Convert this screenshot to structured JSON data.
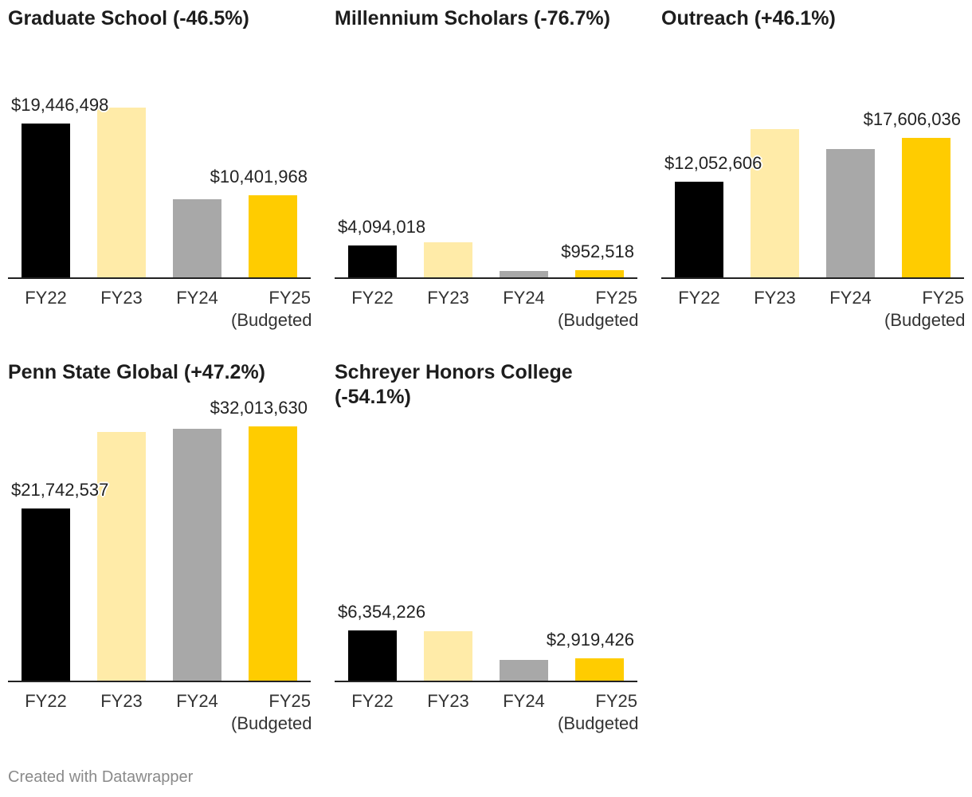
{
  "footer": "Created with Datawrapper",
  "colors": {
    "FY22": "#000000",
    "FY23": "#ffeba8",
    "FY24": "#a8a8a8",
    "FY25": "#ffcc00"
  },
  "chart_data": [
    {
      "type": "bar",
      "title": "Graduate School (-46.5%)",
      "categories": [
        "FY22",
        "FY23",
        "FY24",
        "FY25 (Budgeted)"
      ],
      "values": [
        19446498,
        21400000,
        9900000,
        10401968
      ],
      "labels": [
        {
          "index": 0,
          "text": "$19,446,498"
        },
        {
          "index": 3,
          "text": "$10,401,968"
        }
      ],
      "ylim": [
        0,
        22000000
      ]
    },
    {
      "type": "bar",
      "title": "Millennium Scholars (-76.7%)",
      "categories": [
        "FY22",
        "FY23",
        "FY24",
        "FY25 (Budgeted)"
      ],
      "values": [
        4094018,
        4500000,
        850000,
        952518
      ],
      "labels": [
        {
          "index": 0,
          "text": "$4,094,018"
        },
        {
          "index": 3,
          "text": "$952,518"
        }
      ],
      "ylim": [
        0,
        22000000
      ]
    },
    {
      "type": "bar",
      "title": "Outreach (+46.1%)",
      "categories": [
        "FY22",
        "FY23",
        "FY24",
        "FY25 (Budgeted)"
      ],
      "values": [
        12052606,
        18700000,
        16200000,
        17606036
      ],
      "labels": [
        {
          "index": 0,
          "text": "$12,052,606"
        },
        {
          "index": 3,
          "text": "$17,606,036"
        }
      ],
      "ylim": [
        0,
        22000000
      ]
    },
    {
      "type": "bar",
      "title": "Penn State Global (+47.2%)",
      "categories": [
        "FY22",
        "FY23",
        "FY24",
        "FY25 (Budgeted)"
      ],
      "values": [
        21742537,
        31300000,
        31700000,
        32013630
      ],
      "labels": [
        {
          "index": 0,
          "text": "$21,742,537"
        },
        {
          "index": 3,
          "text": "$32,013,630"
        }
      ],
      "ylim": [
        0,
        34000000
      ]
    },
    {
      "type": "bar",
      "title": "Schreyer Honors College (-54.1%)",
      "categories": [
        "FY22",
        "FY23",
        "FY24",
        "FY25 (Budgeted)"
      ],
      "values": [
        6354226,
        6300000,
        2700000,
        2919426
      ],
      "labels": [
        {
          "index": 0,
          "text": "$6,354,226"
        },
        {
          "index": 3,
          "text": "$2,919,426"
        }
      ],
      "ylim": [
        0,
        34000000
      ]
    }
  ]
}
